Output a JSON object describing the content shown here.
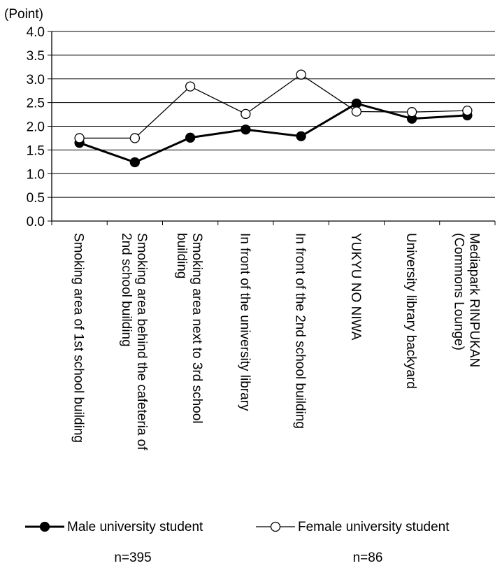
{
  "chart_data": {
    "type": "line",
    "unit_label": "(Point)",
    "title": "",
    "xlabel": "",
    "ylabel": "",
    "ylim": [
      0,
      4
    ],
    "yticks": [
      "0.0",
      "0.5",
      "1.0",
      "1.5",
      "2.0",
      "2.5",
      "3.0",
      "3.5",
      "4.0"
    ],
    "grid": true,
    "legend_position": "bottom",
    "categories": [
      "Smoking area of 1st school building",
      "Smoking area behind the cafeteria of 2nd school building",
      "Smoking area next to 3rd school building",
      "In front of the university library",
      "In front of the 2nd school building",
      "YUKYU NO NIWA",
      "University library backyard",
      "Mediapark RINPUKAN (Commons Lounge)"
    ],
    "category_label_lines": [
      [
        "Smoking area of 1st school building"
      ],
      [
        "Smoking area behind the cafeteria of",
        "2nd school building"
      ],
      [
        "Smoking area next to 3rd school",
        "building"
      ],
      [
        "In front of the university library"
      ],
      [
        "In front of the 2nd school building"
      ],
      [
        "YUKYU NO NIWA"
      ],
      [
        "University library backyard"
      ],
      [
        "Mediapark RINPUKAN",
        "(Commons Lounge)"
      ]
    ],
    "series": [
      {
        "name": "Male university student",
        "n_label": "n=395",
        "marker": "filled-circle",
        "color": "#000000",
        "values": [
          1.65,
          1.24,
          1.76,
          1.93,
          1.79,
          2.48,
          2.16,
          2.23
        ]
      },
      {
        "name": "Female university student",
        "n_label": "n=86",
        "marker": "open-circle",
        "color": "#000000",
        "values": [
          1.75,
          1.75,
          2.84,
          2.26,
          3.09,
          2.31,
          2.3,
          2.33
        ]
      }
    ]
  }
}
